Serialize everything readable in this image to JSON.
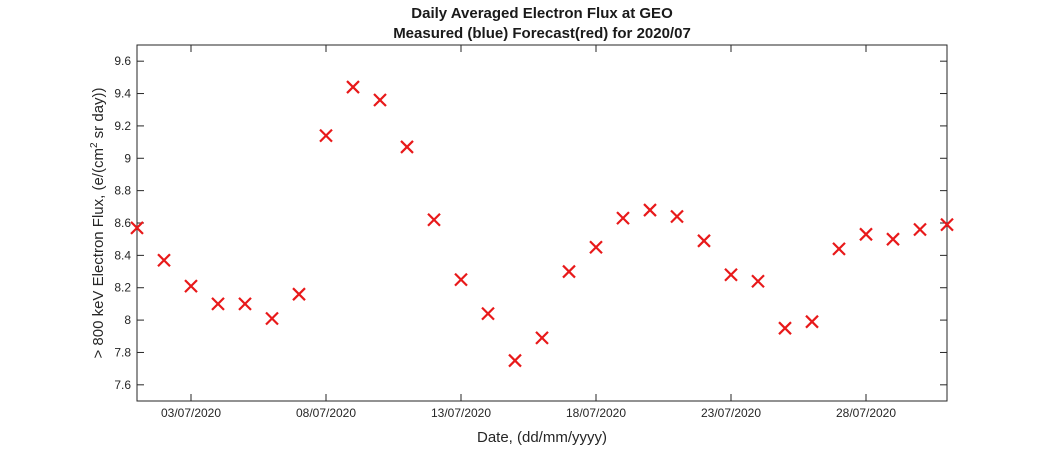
{
  "chart_data": {
    "type": "scatter",
    "title": [
      "Daily Averaged Electron Flux at GEO",
      "Measured (blue) Forecast(red) for 2020/07"
    ],
    "xlabel": "Date, (dd/mm/yyyy)",
    "ylabel": {
      "before_sup": "> 800 keV Electron Flux, (e/(cm",
      "sup": "2",
      "after_sup": " sr day))"
    },
    "xlim": [
      "01/07/2020",
      "31/07/2020"
    ],
    "ylim": [
      7.5,
      9.7
    ],
    "xticks": [
      "03/07/2020",
      "08/07/2020",
      "13/07/2020",
      "18/07/2020",
      "23/07/2020",
      "28/07/2020"
    ],
    "yticks": [
      "7.6",
      "7.8",
      "8",
      "8.2",
      "8.4",
      "8.6",
      "8.8",
      "9",
      "9.2",
      "9.4",
      "9.6"
    ],
    "grid": false,
    "series": [
      {
        "marker": "x",
        "color": "#e8191a",
        "x": [
          "01/07/2020",
          "02/07/2020",
          "03/07/2020",
          "04/07/2020",
          "05/07/2020",
          "06/07/2020",
          "07/07/2020",
          "08/07/2020",
          "09/07/2020",
          "10/07/2020",
          "11/07/2020",
          "12/07/2020",
          "13/07/2020",
          "14/07/2020",
          "15/07/2020",
          "16/07/2020",
          "17/07/2020",
          "18/07/2020",
          "19/07/2020",
          "20/07/2020",
          "21/07/2020",
          "22/07/2020",
          "23/07/2020",
          "24/07/2020",
          "25/07/2020",
          "26/07/2020",
          "27/07/2020",
          "28/07/2020",
          "29/07/2020",
          "30/07/2020",
          "31/07/2020"
        ],
        "y": [
          8.57,
          8.37,
          8.21,
          8.1,
          8.1,
          8.01,
          8.16,
          9.14,
          9.44,
          9.36,
          9.07,
          8.62,
          8.25,
          8.04,
          7.75,
          7.89,
          8.3,
          8.45,
          8.63,
          8.68,
          8.64,
          8.49,
          8.28,
          8.24,
          7.95,
          7.99,
          8.44,
          8.53,
          8.5,
          8.56,
          8.59
        ]
      }
    ]
  }
}
